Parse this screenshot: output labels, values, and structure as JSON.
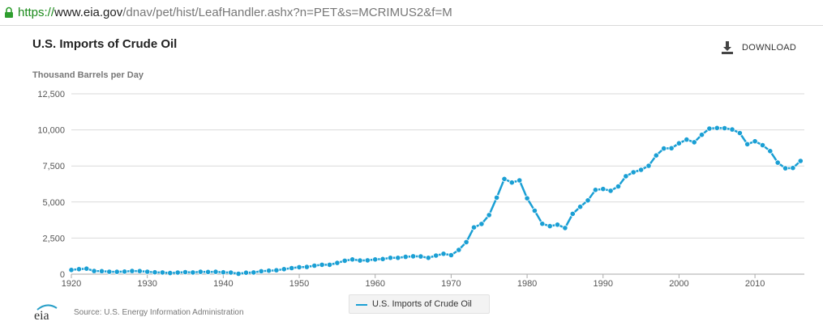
{
  "browser": {
    "url_scheme": "https://",
    "url_host": "www.eia.gov",
    "url_path": "/dnav/pet/hist/LeafHandler.ashx?n=PET&s=MCRIMUS2&f=M"
  },
  "header": {
    "download_label": "DOWNLOAD"
  },
  "footer": {
    "logo_text": "eia",
    "source": "Source: U.S. Energy Information Administration"
  },
  "colors": {
    "series": "#1a9fd4",
    "grid": "#d9d9d9"
  },
  "chart_data": {
    "type": "line",
    "title": "U.S. Imports of Crude Oil",
    "ylabel": "Thousand Barrels per Day",
    "xlabel": "",
    "x_ticks": [
      "1920",
      "1930",
      "1940",
      "1950",
      "1960",
      "1970",
      "1980",
      "1990",
      "2000",
      "2010"
    ],
    "y_ticks": [
      "0",
      "2,500",
      "5,000",
      "7,500",
      "10,000",
      "12,500"
    ],
    "xlim": [
      1920,
      2016.5
    ],
    "ylim": [
      0,
      12500
    ],
    "grid": true,
    "legend": "bottom-center",
    "series": [
      {
        "name": "U.S. Imports of Crude Oil",
        "x": [
          1920,
          1921,
          1922,
          1923,
          1924,
          1925,
          1926,
          1927,
          1928,
          1929,
          1930,
          1931,
          1932,
          1933,
          1934,
          1935,
          1936,
          1937,
          1938,
          1939,
          1940,
          1941,
          1942,
          1943,
          1944,
          1945,
          1946,
          1947,
          1948,
          1949,
          1950,
          1951,
          1952,
          1953,
          1954,
          1955,
          1956,
          1957,
          1958,
          1959,
          1960,
          1961,
          1962,
          1963,
          1964,
          1965,
          1966,
          1967,
          1968,
          1969,
          1970,
          1971,
          1972,
          1973,
          1974,
          1975,
          1976,
          1977,
          1978,
          1979,
          1980,
          1981,
          1982,
          1983,
          1984,
          1985,
          1986,
          1987,
          1988,
          1989,
          1990,
          1991,
          1992,
          1993,
          1994,
          1995,
          1996,
          1997,
          1998,
          1999,
          2000,
          2001,
          2002,
          2003,
          2004,
          2005,
          2006,
          2007,
          2008,
          2009,
          2010,
          2011,
          2012,
          2013,
          2014,
          2015,
          2016
        ],
        "values": [
          290,
          350,
          380,
          220,
          210,
          170,
          165,
          180,
          220,
          215,
          170,
          130,
          120,
          80,
          110,
          140,
          120,
          160,
          150,
          160,
          130,
          110,
          30,
          100,
          120,
          200,
          240,
          270,
          350,
          420,
          480,
          500,
          590,
          650,
          650,
          780,
          930,
          1020,
          950,
          960,
          1020,
          1050,
          1130,
          1130,
          1200,
          1240,
          1230,
          1130,
          1290,
          1410,
          1320,
          1680,
          2220,
          3240,
          3480,
          4100,
          5300,
          6600,
          6350,
          6500,
          5260,
          4400,
          3490,
          3330,
          3430,
          3200,
          4180,
          4670,
          5110,
          5840,
          5900,
          5780,
          6080,
          6790,
          7060,
          7230,
          7510,
          8230,
          8710,
          8730,
          9070,
          9330,
          9140,
          9660,
          10090,
          10130,
          10120,
          10030,
          9780,
          9010,
          9210,
          8940,
          8530,
          7730,
          7340,
          7360,
          7850
        ]
      }
    ]
  }
}
